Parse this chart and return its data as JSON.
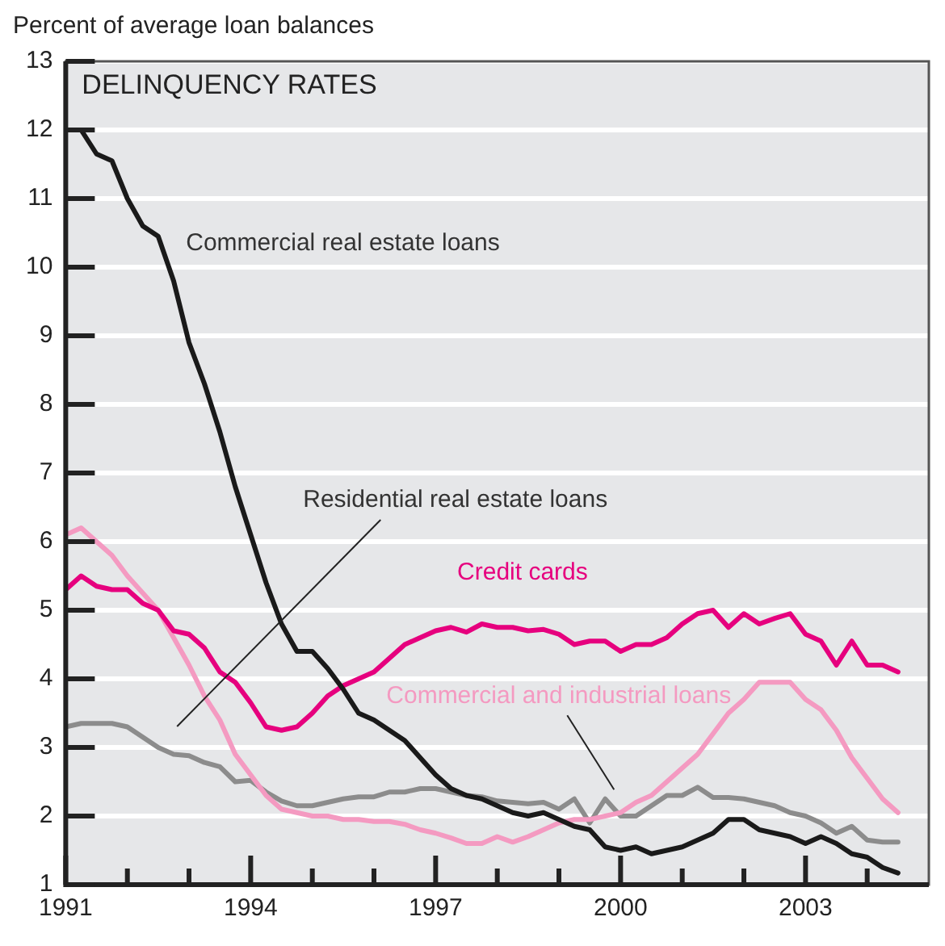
{
  "chart_data": {
    "type": "line",
    "title": "DELINQUENCY RATES",
    "ylabel": "Percent of average loan balances",
    "x": [
      1991,
      1991.25,
      1991.5,
      1991.75,
      1992,
      1992.25,
      1992.5,
      1992.75,
      1993,
      1993.25,
      1993.5,
      1993.75,
      1994,
      1994.25,
      1994.5,
      1994.75,
      1995,
      1995.25,
      1995.5,
      1995.75,
      1996,
      1996.25,
      1996.5,
      1996.75,
      1997,
      1997.25,
      1997.5,
      1997.75,
      1998,
      1998.25,
      1998.5,
      1998.75,
      1999,
      1999.25,
      1999.5,
      1999.75,
      2000,
      2000.25,
      2000.5,
      2000.75,
      2001,
      2001.25,
      2001.5,
      2001.75,
      2002,
      2002.25,
      2002.5,
      2002.75,
      2003,
      2003.25,
      2003.5,
      2003.75,
      2004,
      2004.25,
      2004.5
    ],
    "series": [
      {
        "name": "Commercial real estate loans",
        "color": "#1a1a1a",
        "values": [
          12.0,
          12.0,
          11.65,
          11.55,
          11.0,
          10.6,
          10.45,
          9.8,
          8.9,
          8.3,
          7.6,
          6.8,
          6.1,
          5.4,
          4.8,
          4.4,
          4.4,
          4.15,
          3.85,
          3.5,
          3.4,
          3.25,
          3.1,
          2.85,
          2.6,
          2.4,
          2.3,
          2.25,
          2.15,
          2.05,
          2.0,
          2.05,
          1.95,
          1.85,
          1.8,
          1.55,
          1.5,
          1.55,
          1.45,
          1.5,
          1.55,
          1.65,
          1.75,
          1.95,
          1.95,
          1.8,
          1.75,
          1.7,
          1.6,
          1.7,
          1.6,
          1.45,
          1.4,
          1.25,
          1.17
        ]
      },
      {
        "name": "Credit cards",
        "color": "#e6007e",
        "values": [
          5.3,
          5.5,
          5.35,
          5.3,
          5.3,
          5.1,
          5.0,
          4.7,
          4.65,
          4.45,
          4.1,
          3.95,
          3.65,
          3.3,
          3.25,
          3.3,
          3.5,
          3.75,
          3.9,
          4.0,
          4.1,
          4.3,
          4.5,
          4.6,
          4.7,
          4.75,
          4.68,
          4.8,
          4.75,
          4.75,
          4.7,
          4.72,
          4.65,
          4.5,
          4.55,
          4.55,
          4.4,
          4.5,
          4.5,
          4.6,
          4.8,
          4.95,
          5.0,
          4.75,
          4.95,
          4.8,
          4.88,
          4.95,
          4.65,
          4.55,
          4.2,
          4.55,
          4.2,
          4.2,
          4.1
        ]
      },
      {
        "name": "Commercial and industrial loans",
        "color": "#f49ac1",
        "values": [
          6.1,
          6.2,
          6.0,
          5.8,
          5.5,
          5.25,
          5.0,
          4.6,
          4.2,
          3.75,
          3.4,
          2.9,
          2.6,
          2.3,
          2.1,
          2.05,
          2.0,
          2.0,
          1.95,
          1.95,
          1.92,
          1.92,
          1.88,
          1.8,
          1.75,
          1.68,
          1.6,
          1.6,
          1.7,
          1.62,
          1.7,
          1.8,
          1.9,
          1.95,
          1.95,
          2.0,
          2.05,
          2.2,
          2.3,
          2.5,
          2.7,
          2.9,
          3.2,
          3.5,
          3.7,
          3.95,
          3.95,
          3.95,
          3.7,
          3.55,
          3.25,
          2.85,
          2.55,
          2.25,
          2.05
        ]
      },
      {
        "name": "Residential real estate loans",
        "color": "#8c8c8c",
        "values": [
          3.3,
          3.35,
          3.35,
          3.35,
          3.3,
          3.15,
          3.0,
          2.9,
          2.88,
          2.78,
          2.72,
          2.5,
          2.52,
          2.35,
          2.22,
          2.15,
          2.15,
          2.2,
          2.25,
          2.28,
          2.28,
          2.35,
          2.35,
          2.4,
          2.4,
          2.35,
          2.3,
          2.28,
          2.22,
          2.2,
          2.18,
          2.2,
          2.1,
          2.25,
          1.9,
          2.25,
          2.0,
          2.0,
          2.15,
          2.3,
          2.3,
          2.42,
          2.27,
          2.27,
          2.25,
          2.2,
          2.15,
          2.05,
          2.0,
          1.9,
          1.75,
          1.85,
          1.65,
          1.62,
          1.62
        ]
      }
    ],
    "xlim": [
      1991,
      2005
    ],
    "xticks": [
      1991,
      {
        "value": 1992,
        "label": null
      },
      {
        "value": 1993,
        "label": null
      },
      1994,
      {
        "value": 1995,
        "label": null
      },
      {
        "value": 1996,
        "label": null
      },
      1997,
      {
        "value": 1998,
        "label": null
      },
      {
        "value": 1999,
        "label": null
      },
      2000,
      {
        "value": 2001,
        "label": null
      },
      {
        "value": 2002,
        "label": null
      },
      2003,
      {
        "value": 2004,
        "label": null
      }
    ],
    "ylim": [
      1,
      13
    ],
    "yticks": [
      1,
      2,
      3,
      4,
      5,
      6,
      7,
      8,
      9,
      10,
      11,
      12,
      13
    ],
    "grid": "y",
    "legend": false,
    "marker": "none",
    "line_style": "solid"
  }
}
